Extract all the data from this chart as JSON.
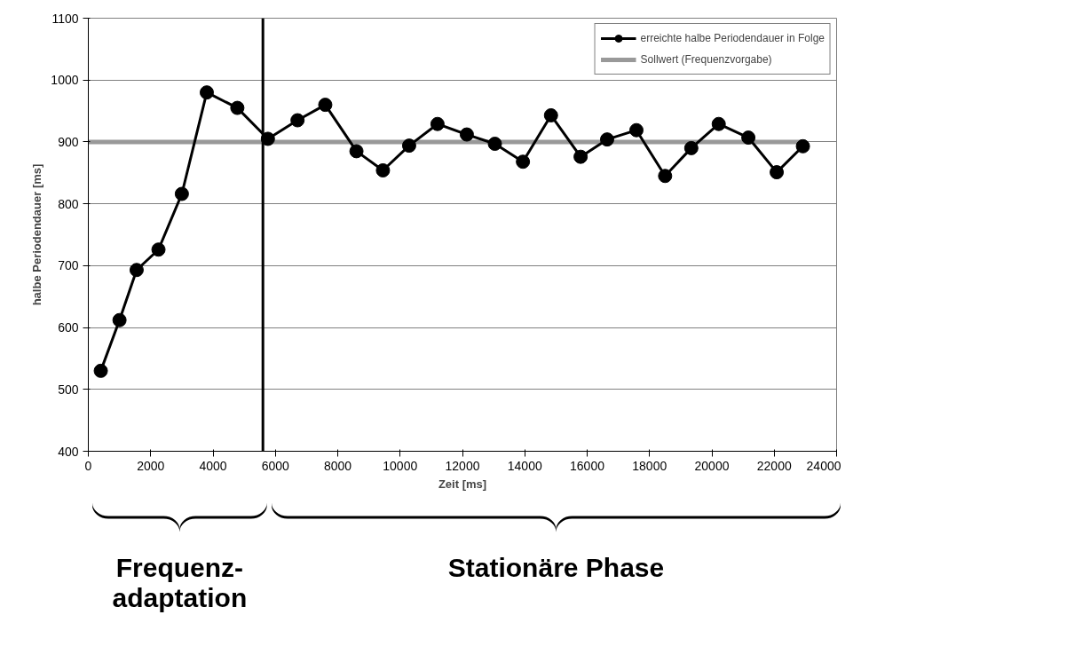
{
  "chart_data": {
    "type": "line",
    "xlabel": "Zeit [ms]",
    "ylabel": "halbe Periodendauer [ms]",
    "xlim": [
      0,
      24000
    ],
    "xticks": [
      0,
      2000,
      4000,
      6000,
      8000,
      10000,
      12000,
      14000,
      16000,
      18000,
      20000,
      22000,
      24000
    ],
    "ylim": [
      400,
      1100
    ],
    "yticks": [
      400,
      500,
      600,
      700,
      800,
      900,
      1000,
      1100
    ],
    "grid": "y",
    "legend": "top right",
    "series": [
      {
        "name": "erreichte halbe Periodendauer in Folge",
        "color": "#000000",
        "marker": "circle",
        "x": [
          400,
          1000,
          1550,
          2250,
          3000,
          3800,
          4780,
          5760,
          6710,
          7600,
          8600,
          9450,
          10290,
          11200,
          12140,
          13040,
          13940,
          14840,
          15790,
          16640,
          17580,
          18500,
          19340,
          20220,
          21170,
          22080,
          22920
        ],
        "values": [
          530,
          612,
          693,
          726,
          816,
          980,
          955,
          905,
          935,
          960,
          885,
          854,
          894,
          929,
          912,
          897,
          868,
          943,
          876,
          904,
          919,
          845,
          890,
          929,
          907,
          851,
          893
        ]
      },
      {
        "name": "Sollwert (Frequenzvorgabe)",
        "color": "#999999",
        "marker": "none",
        "x": [
          0,
          22900
        ],
        "values": [
          900,
          900
        ]
      }
    ],
    "ref_lines": [
      {
        "axis": "x",
        "value": 5600,
        "color": "#000000"
      }
    ],
    "annotations": [
      "Frequenz-\nadaptation",
      "Stationäre Phase"
    ]
  }
}
